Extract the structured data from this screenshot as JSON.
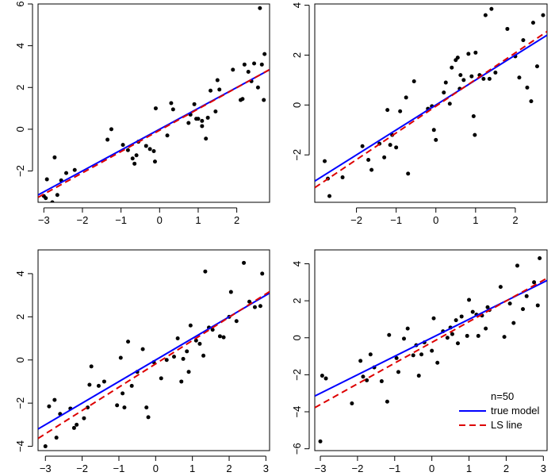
{
  "legend": {
    "title": "n=50",
    "entries": [
      {
        "label": "true model",
        "color": "#0000ff",
        "dash": "solid"
      },
      {
        "label": "LS line",
        "color": "#dd0000",
        "dash": "dashed"
      }
    ],
    "panel": 3
  },
  "chart_data": [
    {
      "type": "scatter",
      "title": "",
      "xlabel": "",
      "ylabel": "",
      "xlim": [
        -3.15,
        2.85
      ],
      "ylim": [
        -3.5,
        6.0
      ],
      "xticks": [
        -3,
        -2,
        -1,
        0,
        1,
        2
      ],
      "yticks": [
        -2,
        0,
        2,
        4,
        6
      ],
      "true_line": {
        "intercept": 0.0,
        "slope": 1.0
      },
      "ls_line": {
        "intercept": -0.05,
        "slope": 1.02
      },
      "points": [
        [
          -3.0,
          -3.2
        ],
        [
          -2.95,
          -3.3
        ],
        [
          -2.92,
          -2.4
        ],
        [
          -2.78,
          -3.5
        ],
        [
          -2.72,
          -1.35
        ],
        [
          -2.65,
          -3.15
        ],
        [
          -2.55,
          -2.45
        ],
        [
          -2.42,
          -2.1
        ],
        [
          -2.2,
          -1.95
        ],
        [
          -1.35,
          -0.5
        ],
        [
          -1.25,
          0.0
        ],
        [
          -0.95,
          -0.75
        ],
        [
          -0.82,
          -1.0
        ],
        [
          -0.7,
          -1.4
        ],
        [
          -0.65,
          -1.65
        ],
        [
          -0.6,
          -1.25
        ],
        [
          -0.35,
          -0.8
        ],
        [
          -0.25,
          -0.95
        ],
        [
          -0.15,
          -1.05
        ],
        [
          -0.12,
          -1.55
        ],
        [
          -0.1,
          1.0
        ],
        [
          0.2,
          -0.3
        ],
        [
          0.3,
          1.25
        ],
        [
          0.35,
          0.95
        ],
        [
          0.75,
          0.3
        ],
        [
          0.8,
          0.7
        ],
        [
          0.9,
          1.2
        ],
        [
          0.95,
          0.5
        ],
        [
          1.0,
          0.5
        ],
        [
          1.1,
          0.4
        ],
        [
          1.2,
          -0.45
        ],
        [
          1.25,
          0.55
        ],
        [
          1.32,
          1.85
        ],
        [
          1.45,
          0.85
        ],
        [
          1.5,
          2.35
        ],
        [
          1.55,
          1.9
        ],
        [
          1.9,
          2.85
        ],
        [
          2.1,
          1.4
        ],
        [
          2.15,
          1.45
        ],
        [
          2.2,
          3.1
        ],
        [
          2.38,
          2.3
        ],
        [
          2.45,
          3.15
        ],
        [
          2.55,
          2.0
        ],
        [
          2.6,
          5.8
        ],
        [
          2.65,
          3.1
        ],
        [
          2.7,
          1.4
        ],
        [
          2.72,
          3.6
        ],
        [
          2.3,
          2.75
        ],
        [
          1.1,
          0.15
        ],
        [
          -0.55,
          -0.6
        ]
      ]
    },
    {
      "type": "scatter",
      "title": "",
      "xlabel": "",
      "ylabel": "",
      "xlim": [
        -3.05,
        2.8
      ],
      "ylim": [
        -3.9,
        4.05
      ],
      "xticks": [
        -2,
        -1,
        0,
        1,
        2
      ],
      "yticks": [
        -2,
        0,
        2,
        4
      ],
      "true_line": {
        "intercept": 0.0,
        "slope": 1.0
      },
      "ls_line": {
        "intercept": -0.05,
        "slope": 1.07
      },
      "points": [
        [
          -2.8,
          -2.25
        ],
        [
          -2.72,
          -2.95
        ],
        [
          -2.68,
          -3.65
        ],
        [
          -2.35,
          -2.9
        ],
        [
          -1.85,
          -1.65
        ],
        [
          -1.7,
          -2.2
        ],
        [
          -1.62,
          -2.6
        ],
        [
          -1.42,
          -1.55
        ],
        [
          -1.3,
          -2.1
        ],
        [
          -1.22,
          -0.2
        ],
        [
          -1.15,
          -1.6
        ],
        [
          -1.1,
          -1.2
        ],
        [
          -1.0,
          -1.7
        ],
        [
          -0.9,
          -0.25
        ],
        [
          -0.75,
          0.3
        ],
        [
          -0.7,
          -2.75
        ],
        [
          -0.55,
          0.95
        ],
        [
          -0.2,
          -0.15
        ],
        [
          -0.1,
          -0.05
        ],
        [
          -0.05,
          -1.0
        ],
        [
          0.0,
          -1.4
        ],
        [
          0.25,
          0.9
        ],
        [
          0.35,
          0.05
        ],
        [
          0.4,
          1.5
        ],
        [
          0.5,
          1.8
        ],
        [
          0.55,
          1.9
        ],
        [
          0.6,
          0.65
        ],
        [
          0.62,
          1.2
        ],
        [
          0.7,
          1.0
        ],
        [
          0.82,
          2.05
        ],
        [
          0.9,
          1.15
        ],
        [
          0.95,
          -0.45
        ],
        [
          0.98,
          -1.2
        ],
        [
          1.0,
          2.1
        ],
        [
          1.1,
          1.2
        ],
        [
          1.2,
          1.05
        ],
        [
          1.25,
          3.6
        ],
        [
          1.35,
          1.05
        ],
        [
          1.4,
          3.85
        ],
        [
          1.5,
          1.3
        ],
        [
          1.8,
          3.05
        ],
        [
          2.0,
          1.95
        ],
        [
          2.1,
          1.1
        ],
        [
          2.2,
          2.6
        ],
        [
          2.3,
          0.7
        ],
        [
          2.4,
          0.15
        ],
        [
          2.45,
          3.3
        ],
        [
          2.55,
          1.55
        ],
        [
          2.7,
          3.6
        ],
        [
          0.2,
          0.5
        ]
      ]
    },
    {
      "type": "scatter",
      "title": "",
      "xlabel": "",
      "ylabel": "",
      "xlim": [
        -3.2,
        3.1
      ],
      "ylim": [
        -4.2,
        5.1
      ],
      "xticks": [
        -3,
        -2,
        -1,
        0,
        1,
        2,
        3
      ],
      "yticks": [
        -4,
        -2,
        0,
        2,
        4
      ],
      "true_line": {
        "intercept": 0.0,
        "slope": 1.0
      },
      "ls_line": {
        "intercept": -0.18,
        "slope": 1.08
      },
      "points": [
        [
          -3.0,
          -4.0
        ],
        [
          -2.9,
          -2.15
        ],
        [
          -2.75,
          -1.85
        ],
        [
          -2.7,
          -3.6
        ],
        [
          -2.6,
          -2.5
        ],
        [
          -2.32,
          -2.25
        ],
        [
          -2.22,
          -3.15
        ],
        [
          -2.15,
          -3.0
        ],
        [
          -1.95,
          -2.7
        ],
        [
          -1.85,
          -2.2
        ],
        [
          -1.8,
          -1.15
        ],
        [
          -1.75,
          -0.3
        ],
        [
          -1.55,
          -1.2
        ],
        [
          -1.05,
          -2.1
        ],
        [
          -0.95,
          0.1
        ],
        [
          -0.9,
          -1.55
        ],
        [
          -0.85,
          -2.2
        ],
        [
          -0.75,
          0.85
        ],
        [
          -0.65,
          -1.2
        ],
        [
          -0.5,
          -0.55
        ],
        [
          -0.35,
          0.5
        ],
        [
          -0.25,
          -2.2
        ],
        [
          -0.2,
          -2.65
        ],
        [
          -0.05,
          -0.1
        ],
        [
          0.15,
          -0.85
        ],
        [
          0.5,
          0.15
        ],
        [
          0.6,
          1.0
        ],
        [
          0.7,
          -1.0
        ],
        [
          0.75,
          0.05
        ],
        [
          0.85,
          0.4
        ],
        [
          0.9,
          -0.55
        ],
        [
          0.95,
          1.6
        ],
        [
          1.2,
          0.75
        ],
        [
          1.3,
          0.2
        ],
        [
          1.35,
          4.1
        ],
        [
          1.45,
          1.5
        ],
        [
          1.55,
          1.4
        ],
        [
          1.75,
          1.1
        ],
        [
          1.85,
          1.05
        ],
        [
          2.05,
          3.15
        ],
        [
          2.2,
          1.8
        ],
        [
          2.4,
          4.5
        ],
        [
          2.55,
          2.7
        ],
        [
          2.7,
          2.45
        ],
        [
          2.85,
          2.5
        ],
        [
          2.9,
          4.0
        ],
        [
          2.0,
          2.0
        ],
        [
          0.3,
          0.0
        ],
        [
          -1.4,
          -1.0
        ],
        [
          1.1,
          0.9
        ]
      ]
    },
    {
      "type": "scatter",
      "title": "",
      "xlabel": "",
      "ylabel": "",
      "xlim": [
        -3.15,
        3.1
      ],
      "ylim": [
        -6.1,
        4.75
      ],
      "xticks": [
        -3,
        -2,
        -1,
        0,
        1,
        2,
        3
      ],
      "yticks": [
        -6,
        -4,
        -2,
        0,
        2,
        4
      ],
      "true_line": {
        "intercept": 0.0,
        "slope": 1.0
      },
      "ls_line": {
        "intercept": -0.25,
        "slope": 1.12
      },
      "points": [
        [
          -3.0,
          -5.6
        ],
        [
          -2.95,
          -2.05
        ],
        [
          -2.85,
          -2.2
        ],
        [
          -2.15,
          -3.55
        ],
        [
          -1.92,
          -1.25
        ],
        [
          -1.85,
          -2.1
        ],
        [
          -1.75,
          -2.3
        ],
        [
          -1.65,
          -0.9
        ],
        [
          -1.55,
          -1.6
        ],
        [
          -1.35,
          -2.35
        ],
        [
          -1.2,
          -3.45
        ],
        [
          -1.15,
          0.15
        ],
        [
          -0.95,
          -1.1
        ],
        [
          -0.9,
          -1.85
        ],
        [
          -0.75,
          -0.05
        ],
        [
          -0.65,
          0.5
        ],
        [
          -0.5,
          -0.95
        ],
        [
          -0.42,
          -0.4
        ],
        [
          -0.35,
          -2.05
        ],
        [
          -0.28,
          -0.9
        ],
        [
          -0.2,
          -0.25
        ],
        [
          0.0,
          -0.7
        ],
        [
          0.05,
          1.05
        ],
        [
          0.15,
          -1.35
        ],
        [
          0.3,
          0.35
        ],
        [
          0.42,
          0.0
        ],
        [
          0.5,
          0.55
        ],
        [
          0.65,
          0.95
        ],
        [
          0.7,
          -0.3
        ],
        [
          0.8,
          1.15
        ],
        [
          0.95,
          0.1
        ],
        [
          1.0,
          2.05
        ],
        [
          1.1,
          1.4
        ],
        [
          1.2,
          1.25
        ],
        [
          1.25,
          0.1
        ],
        [
          1.35,
          1.2
        ],
        [
          1.45,
          0.5
        ],
        [
          1.5,
          1.65
        ],
        [
          1.55,
          1.5
        ],
        [
          1.85,
          2.75
        ],
        [
          1.95,
          0.05
        ],
        [
          2.1,
          1.85
        ],
        [
          2.2,
          0.8
        ],
        [
          2.3,
          3.9
        ],
        [
          2.45,
          1.55
        ],
        [
          2.55,
          2.25
        ],
        [
          2.75,
          3.0
        ],
        [
          2.85,
          1.75
        ],
        [
          2.9,
          4.3
        ],
        [
          0.55,
          0.2
        ]
      ]
    }
  ]
}
